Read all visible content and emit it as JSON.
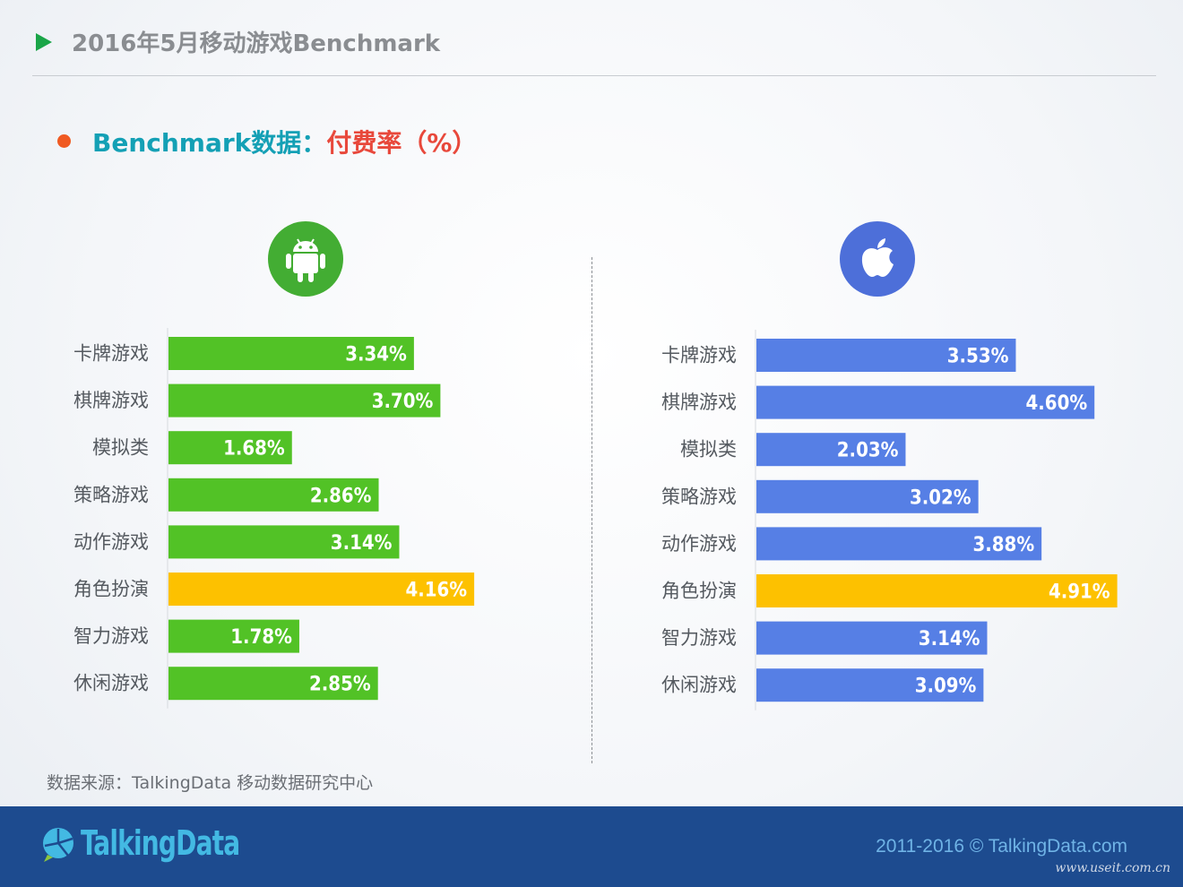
{
  "header": {
    "title": "2016年5月移动游戏Benchmark"
  },
  "subtitle": {
    "part_a": "Benchmark数据：",
    "part_b": "付费率（%）"
  },
  "icons": {
    "android": "android-icon",
    "apple": "apple-icon"
  },
  "colors": {
    "android_bar": "#52c226",
    "ios_bar": "#567fe5",
    "highlight_bar": "#fdc100"
  },
  "chart_data": [
    {
      "type": "bar",
      "orientation": "horizontal",
      "platform_icon": "android-icon",
      "categories": [
        "卡牌游戏",
        "棋牌游戏",
        "模拟类",
        "策略游戏",
        "动作游戏",
        "角色扮演",
        "智力游戏",
        "休闲游戏"
      ],
      "values": [
        3.34,
        3.7,
        1.68,
        2.86,
        3.14,
        4.16,
        1.78,
        2.85
      ],
      "value_labels": [
        "3.34%",
        "3.70%",
        "1.68%",
        "2.86%",
        "3.14%",
        "4.16%",
        "1.78%",
        "2.85%"
      ],
      "highlight_index": 5,
      "xlim": [
        0,
        5
      ]
    },
    {
      "type": "bar",
      "orientation": "horizontal",
      "platform_icon": "apple-icon",
      "categories": [
        "卡牌游戏",
        "棋牌游戏",
        "模拟类",
        "策略游戏",
        "动作游戏",
        "角色扮演",
        "智力游戏",
        "休闲游戏"
      ],
      "values": [
        3.53,
        4.6,
        2.03,
        3.02,
        3.88,
        4.91,
        3.14,
        3.09
      ],
      "value_labels": [
        "3.53%",
        "4.60%",
        "2.03%",
        "3.02%",
        "3.88%",
        "4.91%",
        "3.14%",
        "3.09%"
      ],
      "highlight_index": 5,
      "xlim": [
        0,
        5
      ]
    }
  ],
  "source": "数据来源：TalkingData 移动数据研究中心",
  "footer": {
    "logo_text": "TalkingData",
    "copyright": "2011-2016 © TalkingData.com",
    "watermark": "www.useit.com.cn"
  }
}
